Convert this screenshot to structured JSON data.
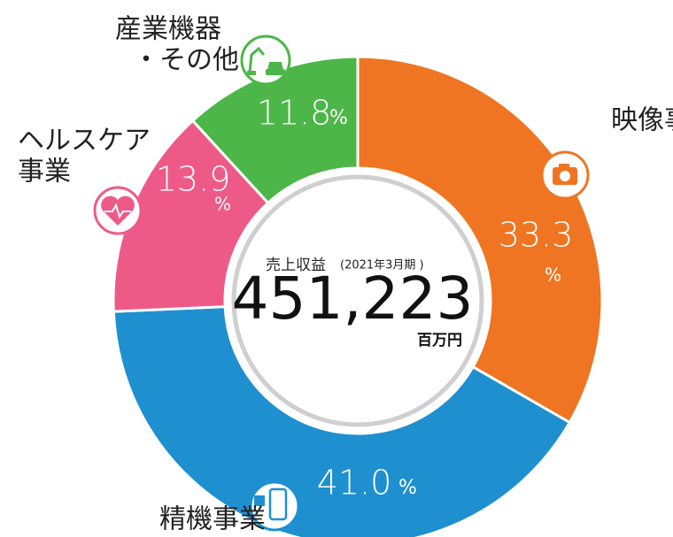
{
  "chart_data": {
    "type": "donut",
    "categories": [
      [
        "映像事業"
      ],
      [
        "精機事業"
      ],
      [
        "ヘルスケア",
        "事業"
      ],
      [
        "産業機器",
        "・その他"
      ]
    ],
    "values": [
      33.3,
      41.0,
      13.9,
      11.8
    ],
    "value_labels": [
      "33.3",
      "41.0",
      "13.9",
      "11.8"
    ],
    "unit": "%",
    "colors": [
      "#f07522",
      "#1e90d0",
      "#ee5a87",
      "#4cb648"
    ],
    "center": {
      "label": "売上収益",
      "period": "(2021年3月期 )",
      "total": "451,223",
      "total_unit": "百万円"
    }
  }
}
